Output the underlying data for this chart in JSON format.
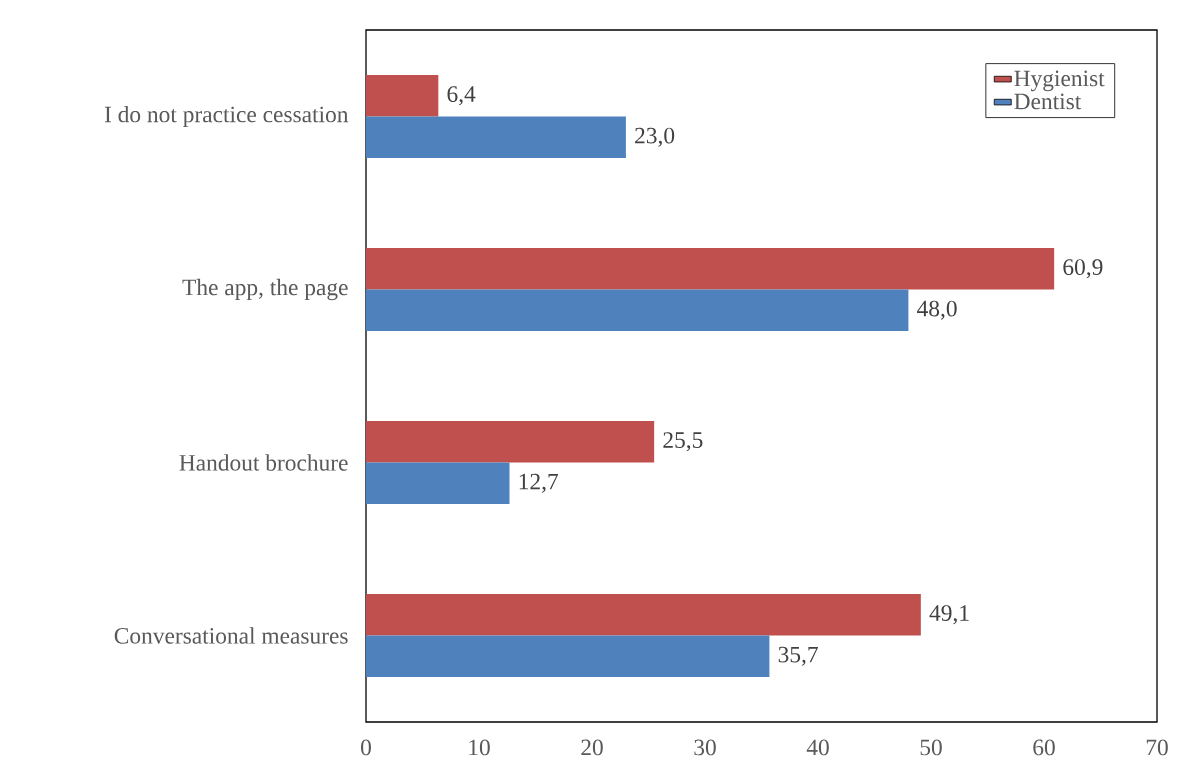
{
  "chart_data": {
    "type": "bar",
    "orientation": "horizontal",
    "categories": [
      "I do not practice cessation",
      "The app, the page",
      "Handout brochure",
      "Conversational measures"
    ],
    "series": [
      {
        "name": "Hygienist",
        "color": "#c0504d",
        "values": [
          6.4,
          60.9,
          25.5,
          49.1
        ],
        "value_labels": [
          "6,4",
          "60,9",
          "25,5",
          "49,1"
        ]
      },
      {
        "name": "Dentist",
        "color": "#4f81bd",
        "values": [
          23.0,
          48.0,
          12.7,
          35.7
        ],
        "value_labels": [
          "23,0",
          "48,0",
          "12,7",
          "35,7"
        ]
      }
    ],
    "xlim": [
      0,
      70
    ],
    "xticks": [
      0,
      10,
      20,
      30,
      40,
      50,
      60,
      70
    ],
    "legend": "top right"
  }
}
